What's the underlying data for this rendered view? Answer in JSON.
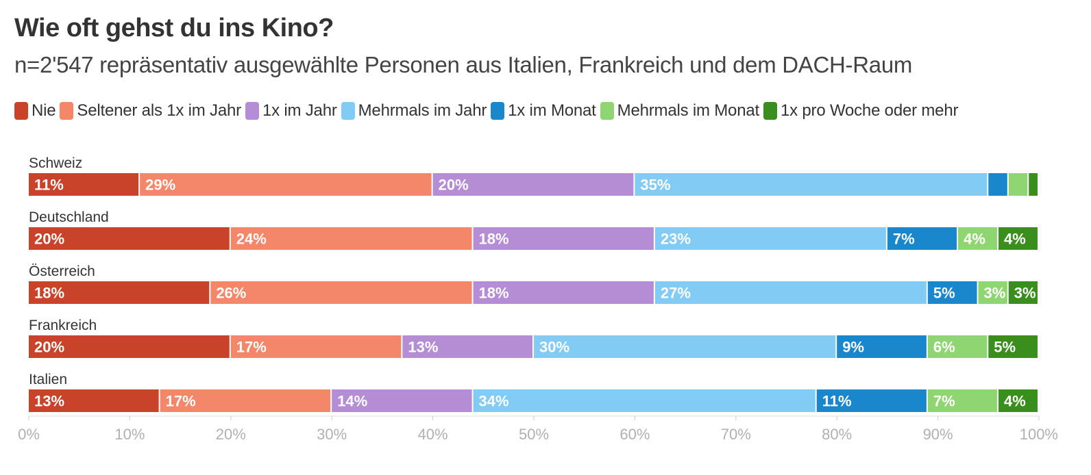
{
  "title": "Wie oft gehst du ins Kino?",
  "subtitle": "n=2'547 repräsentativ ausgewählte Personen aus Italien, Frankreich und dem DACH-Raum",
  "chart_data": {
    "type": "bar",
    "orientation": "horizontal",
    "stacked": true,
    "xlim": [
      0,
      100
    ],
    "x_ticks": [
      "0%",
      "10%",
      "20%",
      "30%",
      "40%",
      "50%",
      "60%",
      "70%",
      "80%",
      "90%",
      "100%"
    ],
    "categories": [
      "Schweiz",
      "Deutschland",
      "Österreich",
      "Frankreich",
      "Italien"
    ],
    "series": [
      {
        "name": "Nie",
        "color": "#c9432a",
        "values": [
          11,
          20,
          18,
          20,
          13
        ],
        "labels": [
          "11%",
          "20%",
          "18%",
          "20%",
          "13%"
        ]
      },
      {
        "name": "Seltener als 1x im Jahr",
        "color": "#f4866a",
        "values": [
          29,
          24,
          26,
          17,
          17
        ],
        "labels": [
          "29%",
          "24%",
          "26%",
          "17%",
          "17%"
        ]
      },
      {
        "name": "1x im Jahr",
        "color": "#b48dd5",
        "values": [
          20,
          18,
          18,
          13,
          14
        ],
        "labels": [
          "20%",
          "18%",
          "18%",
          "13%",
          "14%"
        ]
      },
      {
        "name": "Mehrmals im Jahr",
        "color": "#82cbf5",
        "values": [
          35,
          23,
          27,
          30,
          34
        ],
        "labels": [
          "35%",
          "23%",
          "27%",
          "30%",
          "34%"
        ]
      },
      {
        "name": "1x im Monat",
        "color": "#1a86cc",
        "values": [
          2,
          7,
          5,
          9,
          11
        ],
        "labels": [
          "",
          "7%",
          "5%",
          "9%",
          "11%"
        ]
      },
      {
        "name": "Mehrmals im Monat",
        "color": "#8fd672",
        "values": [
          2,
          4,
          3,
          6,
          7
        ],
        "labels": [
          "",
          "4%",
          "3%",
          "6%",
          "7%"
        ]
      },
      {
        "name": "1x pro Woche oder mehr",
        "color": "#3a8e1e",
        "values": [
          1,
          4,
          3,
          5,
          4
        ],
        "labels": [
          "",
          "4%",
          "3%",
          "5%",
          "4%"
        ]
      }
    ],
    "grid": false,
    "legend_position": "top"
  }
}
